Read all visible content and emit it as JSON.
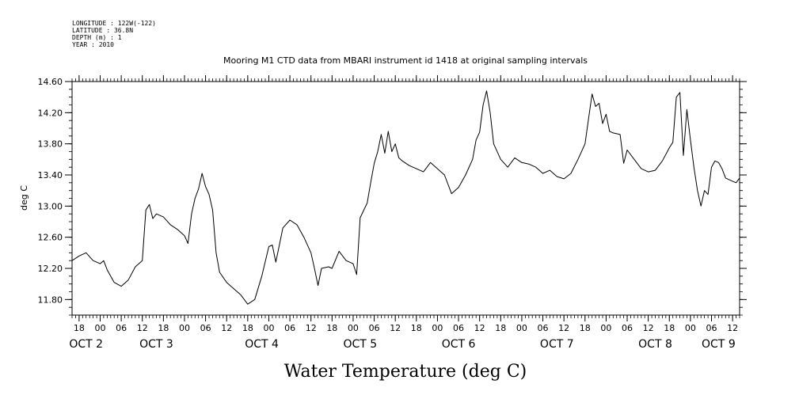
{
  "header": {
    "longitude": "LONGITUDE : 122W(-122)",
    "latitude": "LATITUDE : 36.8N",
    "depth": "DEPTH (m) : 1",
    "year": "YEAR : 2010"
  },
  "chart_data": {
    "type": "line",
    "title": "Mooring M1 CTD data from MBARI instrument id 1418 at original sampling intervals",
    "xlabel": "Water Temperature (deg C)",
    "ylabel": "deg C",
    "xlim": [
      "2010-10-01T16:00",
      "2010-10-09T14:00"
    ],
    "ylim": [
      11.6,
      14.6
    ],
    "y_ticks": [
      11.8,
      12.2,
      12.6,
      13.0,
      13.4,
      13.8,
      14.2,
      14.6
    ],
    "y_tick_labels": [
      "11.80",
      "12.20",
      "12.60",
      "13.00",
      "13.40",
      "13.80",
      "14.20",
      "14.60"
    ],
    "x_hour_ticks": [
      {
        "t": "2010-10-01T18:00",
        "label": "18"
      },
      {
        "t": "2010-10-02T00:00",
        "label": "00"
      },
      {
        "t": "2010-10-02T06:00",
        "label": "06"
      },
      {
        "t": "2010-10-02T12:00",
        "label": "12"
      },
      {
        "t": "2010-10-02T18:00",
        "label": "18"
      },
      {
        "t": "2010-10-03T00:00",
        "label": "00"
      },
      {
        "t": "2010-10-03T06:00",
        "label": "06"
      },
      {
        "t": "2010-10-03T12:00",
        "label": "12"
      },
      {
        "t": "2010-10-03T18:00",
        "label": "18"
      },
      {
        "t": "2010-10-04T00:00",
        "label": "00"
      },
      {
        "t": "2010-10-04T06:00",
        "label": "06"
      },
      {
        "t": "2010-10-04T12:00",
        "label": "12"
      },
      {
        "t": "2010-10-04T18:00",
        "label": "18"
      },
      {
        "t": "2010-10-05T00:00",
        "label": "00"
      },
      {
        "t": "2010-10-05T06:00",
        "label": "06"
      },
      {
        "t": "2010-10-05T12:00",
        "label": "12"
      },
      {
        "t": "2010-10-05T18:00",
        "label": "18"
      },
      {
        "t": "2010-10-06T00:00",
        "label": "00"
      },
      {
        "t": "2010-10-06T06:00",
        "label": "06"
      },
      {
        "t": "2010-10-06T12:00",
        "label": "12"
      },
      {
        "t": "2010-10-06T18:00",
        "label": "18"
      },
      {
        "t": "2010-10-07T00:00",
        "label": "00"
      },
      {
        "t": "2010-10-07T06:00",
        "label": "06"
      },
      {
        "t": "2010-10-07T12:00",
        "label": "12"
      },
      {
        "t": "2010-10-07T18:00",
        "label": "18"
      },
      {
        "t": "2010-10-08T00:00",
        "label": "00"
      },
      {
        "t": "2010-10-08T06:00",
        "label": "06"
      },
      {
        "t": "2010-10-08T12:00",
        "label": "12"
      },
      {
        "t": "2010-10-08T18:00",
        "label": "18"
      },
      {
        "t": "2010-10-09T00:00",
        "label": "00"
      },
      {
        "t": "2010-10-09T06:00",
        "label": "06"
      },
      {
        "t": "2010-10-09T12:00",
        "label": "12"
      }
    ],
    "x_date_labels": [
      {
        "t": "2010-10-01T20:00",
        "label": "OCT  2"
      },
      {
        "t": "2010-10-02T16:00",
        "label": "OCT  3"
      },
      {
        "t": "2010-10-03T22:00",
        "label": "OCT  4"
      },
      {
        "t": "2010-10-05T02:00",
        "label": "OCT  5"
      },
      {
        "t": "2010-10-06T06:00",
        "label": "OCT  6"
      },
      {
        "t": "2010-10-07T10:00",
        "label": "OCT  7"
      },
      {
        "t": "2010-10-08T14:00",
        "label": "OCT  8"
      },
      {
        "t": "2010-10-09T08:00",
        "label": "OCT  9"
      }
    ],
    "series": [
      {
        "points": [
          [
            "2010-10-01T16:00",
            12.3
          ],
          [
            "2010-10-01T18:00",
            12.36
          ],
          [
            "2010-10-01T20:00",
            12.4
          ],
          [
            "2010-10-01T22:00",
            12.3
          ],
          [
            "2010-10-02T00:00",
            12.26
          ],
          [
            "2010-10-02T01:00",
            12.3
          ],
          [
            "2010-10-02T02:00",
            12.18
          ],
          [
            "2010-10-02T04:00",
            12.02
          ],
          [
            "2010-10-02T06:00",
            11.97
          ],
          [
            "2010-10-02T08:00",
            12.05
          ],
          [
            "2010-10-02T10:00",
            12.22
          ],
          [
            "2010-10-02T12:00",
            12.3
          ],
          [
            "2010-10-02T13:00",
            12.95
          ],
          [
            "2010-10-02T14:00",
            13.02
          ],
          [
            "2010-10-02T15:00",
            12.84
          ],
          [
            "2010-10-02T16:00",
            12.9
          ],
          [
            "2010-10-02T18:00",
            12.86
          ],
          [
            "2010-10-02T20:00",
            12.76
          ],
          [
            "2010-10-02T22:00",
            12.7
          ],
          [
            "2010-10-03T00:00",
            12.62
          ],
          [
            "2010-10-03T01:00",
            12.52
          ],
          [
            "2010-10-03T02:00",
            12.9
          ],
          [
            "2010-10-03T03:00",
            13.1
          ],
          [
            "2010-10-03T04:00",
            13.22
          ],
          [
            "2010-10-03T05:00",
            13.42
          ],
          [
            "2010-10-03T06:00",
            13.25
          ],
          [
            "2010-10-03T07:00",
            13.15
          ],
          [
            "2010-10-03T08:00",
            12.95
          ],
          [
            "2010-10-03T09:00",
            12.4
          ],
          [
            "2010-10-03T10:00",
            12.15
          ],
          [
            "2010-10-03T12:00",
            12.02
          ],
          [
            "2010-10-03T14:00",
            11.94
          ],
          [
            "2010-10-03T16:00",
            11.86
          ],
          [
            "2010-10-03T18:00",
            11.74
          ],
          [
            "2010-10-03T20:00",
            11.8
          ],
          [
            "2010-10-03T22:00",
            12.1
          ],
          [
            "2010-10-04T00:00",
            12.48
          ],
          [
            "2010-10-04T01:00",
            12.5
          ],
          [
            "2010-10-04T02:00",
            12.28
          ],
          [
            "2010-10-04T03:00",
            12.5
          ],
          [
            "2010-10-04T04:00",
            12.72
          ],
          [
            "2010-10-04T06:00",
            12.82
          ],
          [
            "2010-10-04T08:00",
            12.76
          ],
          [
            "2010-10-04T10:00",
            12.6
          ],
          [
            "2010-10-04T12:00",
            12.4
          ],
          [
            "2010-10-04T13:00",
            12.2
          ],
          [
            "2010-10-04T14:00",
            11.98
          ],
          [
            "2010-10-04T15:00",
            12.2
          ],
          [
            "2010-10-04T17:00",
            12.22
          ],
          [
            "2010-10-04T18:00",
            12.2
          ],
          [
            "2010-10-04T20:00",
            12.42
          ],
          [
            "2010-10-04T22:00",
            12.3
          ],
          [
            "2010-10-05T00:00",
            12.26
          ],
          [
            "2010-10-05T01:00",
            12.12
          ],
          [
            "2010-10-05T02:00",
            12.85
          ],
          [
            "2010-10-05T04:00",
            13.04
          ],
          [
            "2010-10-05T05:00",
            13.3
          ],
          [
            "2010-10-05T06:00",
            13.55
          ],
          [
            "2010-10-05T07:00",
            13.7
          ],
          [
            "2010-10-05T08:00",
            13.92
          ],
          [
            "2010-10-05T09:00",
            13.68
          ],
          [
            "2010-10-05T10:00",
            13.96
          ],
          [
            "2010-10-05T11:00",
            13.7
          ],
          [
            "2010-10-05T12:00",
            13.8
          ],
          [
            "2010-10-05T13:00",
            13.62
          ],
          [
            "2010-10-05T14:00",
            13.58
          ],
          [
            "2010-10-05T16:00",
            13.52
          ],
          [
            "2010-10-05T18:00",
            13.48
          ],
          [
            "2010-10-05T20:00",
            13.44
          ],
          [
            "2010-10-05T22:00",
            13.56
          ],
          [
            "2010-10-06T00:00",
            13.48
          ],
          [
            "2010-10-06T02:00",
            13.4
          ],
          [
            "2010-10-06T04:00",
            13.16
          ],
          [
            "2010-10-06T06:00",
            13.24
          ],
          [
            "2010-10-06T08:00",
            13.4
          ],
          [
            "2010-10-06T10:00",
            13.6
          ],
          [
            "2010-10-06T11:00",
            13.85
          ],
          [
            "2010-10-06T12:00",
            13.95
          ],
          [
            "2010-10-06T13:00",
            14.3
          ],
          [
            "2010-10-06T14:00",
            14.48
          ],
          [
            "2010-10-06T15:00",
            14.2
          ],
          [
            "2010-10-06T16:00",
            13.8
          ],
          [
            "2010-10-06T18:00",
            13.6
          ],
          [
            "2010-10-06T20:00",
            13.5
          ],
          [
            "2010-10-06T22:00",
            13.62
          ],
          [
            "2010-10-07T00:00",
            13.56
          ],
          [
            "2010-10-07T02:00",
            13.54
          ],
          [
            "2010-10-07T04:00",
            13.5
          ],
          [
            "2010-10-07T06:00",
            13.42
          ],
          [
            "2010-10-07T08:00",
            13.46
          ],
          [
            "2010-10-07T10:00",
            13.38
          ],
          [
            "2010-10-07T12:00",
            13.35
          ],
          [
            "2010-10-07T14:00",
            13.42
          ],
          [
            "2010-10-07T16:00",
            13.6
          ],
          [
            "2010-10-07T18:00",
            13.8
          ],
          [
            "2010-10-07T19:00",
            14.12
          ],
          [
            "2010-10-07T20:00",
            14.44
          ],
          [
            "2010-10-07T21:00",
            14.28
          ],
          [
            "2010-10-07T22:00",
            14.32
          ],
          [
            "2010-10-07T23:00",
            14.06
          ],
          [
            "2010-10-08T00:00",
            14.18
          ],
          [
            "2010-10-08T01:00",
            13.96
          ],
          [
            "2010-10-08T02:00",
            13.94
          ],
          [
            "2010-10-08T04:00",
            13.92
          ],
          [
            "2010-10-08T05:00",
            13.55
          ],
          [
            "2010-10-08T06:00",
            13.72
          ],
          [
            "2010-10-08T08:00",
            13.6
          ],
          [
            "2010-10-08T10:00",
            13.48
          ],
          [
            "2010-10-08T12:00",
            13.44
          ],
          [
            "2010-10-08T14:00",
            13.46
          ],
          [
            "2010-10-08T16:00",
            13.58
          ],
          [
            "2010-10-08T18:00",
            13.75
          ],
          [
            "2010-10-08T19:00",
            13.82
          ],
          [
            "2010-10-08T20:00",
            14.4
          ],
          [
            "2010-10-08T21:00",
            14.46
          ],
          [
            "2010-10-08T22:00",
            13.65
          ],
          [
            "2010-10-08T23:00",
            14.24
          ],
          [
            "2010-10-09T00:00",
            13.85
          ],
          [
            "2010-10-09T01:00",
            13.5
          ],
          [
            "2010-10-09T02:00",
            13.2
          ],
          [
            "2010-10-09T03:00",
            13.0
          ],
          [
            "2010-10-09T04:00",
            13.2
          ],
          [
            "2010-10-09T05:00",
            13.15
          ],
          [
            "2010-10-09T06:00",
            13.5
          ],
          [
            "2010-10-09T07:00",
            13.58
          ],
          [
            "2010-10-09T08:00",
            13.56
          ],
          [
            "2010-10-09T09:00",
            13.48
          ],
          [
            "2010-10-09T10:00",
            13.36
          ],
          [
            "2010-10-09T12:00",
            13.32
          ],
          [
            "2010-10-09T13:00",
            13.3
          ],
          [
            "2010-10-09T14:00",
            13.36
          ]
        ]
      }
    ],
    "grid": false,
    "colors": {
      "line": "#000000",
      "background": "#ffffff"
    }
  }
}
